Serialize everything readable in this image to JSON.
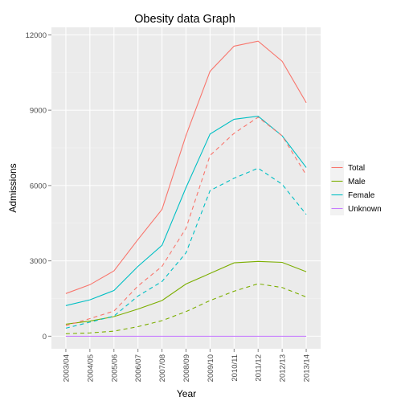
{
  "chart_data": {
    "type": "line",
    "title": "Obesity data Graph",
    "xlabel": "Year",
    "ylabel": "Admissions",
    "ylim": [
      -500,
      12300
    ],
    "yticks": [
      0,
      3000,
      6000,
      9000,
      12000
    ],
    "grid": true,
    "legend_position": "right",
    "categories": [
      "2003/04",
      "2004/05",
      "2005/06",
      "2006/07",
      "2007/08",
      "2008/09",
      "2009/10",
      "2010/11",
      "2011/12",
      "2012/13",
      "2013/14"
    ],
    "series": [
      {
        "name": "Total",
        "color": "#F8766D",
        "dashed": false,
        "values": [
          1700,
          2050,
          2600,
          3850,
          5050,
          8000,
          10550,
          11550,
          11750,
          10950,
          9300
        ]
      },
      {
        "name": "Male",
        "color": "#7CAE00",
        "dashed": false,
        "values": [
          480,
          600,
          780,
          1080,
          1420,
          2080,
          2500,
          2920,
          2980,
          2940,
          2570
        ]
      },
      {
        "name": "Female",
        "color": "#00BFC4",
        "dashed": false,
        "values": [
          1220,
          1450,
          1820,
          2780,
          3620,
          5920,
          8050,
          8640,
          8760,
          7980,
          6720
        ]
      },
      {
        "name": "Unknown",
        "color": "#C77CFF",
        "dashed": false,
        "values": [
          0,
          0,
          0,
          0,
          0,
          0,
          0,
          0,
          0,
          0,
          0
        ]
      },
      {
        "name": "",
        "color": "#F8766D",
        "dashed": true,
        "values": [
          420,
          700,
          1000,
          2000,
          2780,
          4300,
          7200,
          8080,
          8720,
          7980,
          6420
        ]
      },
      {
        "name": "",
        "color": "#7CAE00",
        "dashed": true,
        "values": [
          100,
          130,
          200,
          380,
          620,
          980,
          1420,
          1790,
          2090,
          1940,
          1560
        ]
      },
      {
        "name": "",
        "color": "#00BFC4",
        "dashed": true,
        "values": [
          320,
          560,
          800,
          1600,
          2180,
          3320,
          5800,
          6290,
          6690,
          6050,
          4850
        ]
      }
    ]
  }
}
